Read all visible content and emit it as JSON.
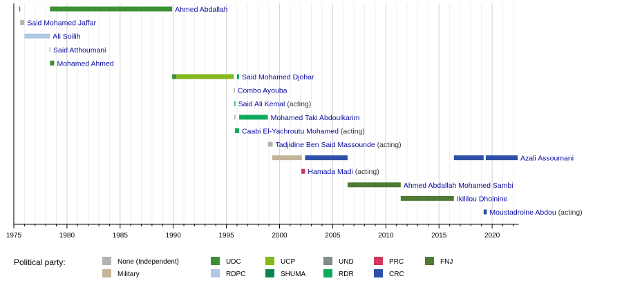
{
  "chart_data": {
    "type": "timeline",
    "title": "",
    "xlim": [
      1975,
      2022.5
    ],
    "x_ticks": [
      1975,
      1980,
      1985,
      1990,
      1995,
      2000,
      2005,
      2010,
      2015,
      2020
    ],
    "grid": true,
    "legend_title": "Political party:",
    "legend_position": "bottom",
    "parties": [
      {
        "key": "none",
        "name": "None (Independent)",
        "color": "#b3b3b3"
      },
      {
        "key": "military",
        "name": "Military",
        "color": "#c4b49a"
      },
      {
        "key": "udc",
        "name": "UDC",
        "color": "#3d8f35"
      },
      {
        "key": "rdpc",
        "name": "RDPC",
        "color": "#b0c8e3"
      },
      {
        "key": "ucp",
        "name": "UCP",
        "color": "#84b81c"
      },
      {
        "key": "shuma",
        "name": "SHUMA",
        "color": "#0a8551"
      },
      {
        "key": "und",
        "name": "UND",
        "color": "#7f8c8a"
      },
      {
        "key": "rdr",
        "name": "RDR",
        "color": "#0daa5c"
      },
      {
        "key": "prc",
        "name": "PRC",
        "color": "#d0365e"
      },
      {
        "key": "crc",
        "name": "CRC",
        "color": "#2e50a8"
      },
      {
        "key": "fnj",
        "name": "FNJ",
        "color": "#4e7a34"
      }
    ],
    "rows": [
      {
        "name": "Ahmed Abdallah",
        "note": "",
        "segments": [
          [
            1975.5,
            1975.6,
            "udc"
          ],
          [
            1978.4,
            1989.9,
            "udc"
          ]
        ]
      },
      {
        "name": "Said Mohamed Jaffar",
        "note": "",
        "segments": [
          [
            1975.6,
            1976.0,
            "none"
          ]
        ]
      },
      {
        "name": "Ali Soilih",
        "note": "",
        "segments": [
          [
            1976.0,
            1978.4,
            "rdpc"
          ]
        ]
      },
      {
        "name": "Said Atthoumani",
        "note": "",
        "segments": [
          [
            1978.35,
            1978.42,
            "none"
          ]
        ]
      },
      {
        "name": "Mohamed Ahmed",
        "note": "",
        "segments": [
          [
            1978.4,
            1978.8,
            "udc"
          ]
        ]
      },
      {
        "name": "Said Mohamed Djohar",
        "note": "",
        "segments": [
          [
            1989.9,
            1990.3,
            "udc"
          ],
          [
            1990.3,
            1995.7,
            "ucp"
          ],
          [
            1996.0,
            1996.2,
            "rdr"
          ]
        ]
      },
      {
        "name": "Combo Ayouba",
        "note": "",
        "segments": [
          [
            1995.7,
            1995.8,
            "none"
          ]
        ]
      },
      {
        "name": "Said Ali Kemal",
        "note": "(acting)",
        "segments": [
          [
            1995.75,
            1995.82,
            "rdr"
          ]
        ]
      },
      {
        "name": "Mohamed Taki Abdoulkarim",
        "note": "",
        "segments": [
          [
            1995.75,
            1995.82,
            "none"
          ],
          [
            1996.2,
            1998.9,
            "rdr"
          ]
        ]
      },
      {
        "name": "Caabi El-Yachroutu Mohamed",
        "note": "(acting)",
        "segments": [
          [
            1995.8,
            1996.2,
            "rdr"
          ]
        ]
      },
      {
        "name": "Tadjidine Ben Said Massounde",
        "note": "(acting)",
        "segments": [
          [
            1998.9,
            1999.35,
            "none"
          ]
        ]
      },
      {
        "name": "Azali Assoumani",
        "note": "",
        "segments": [
          [
            1999.3,
            2002.1,
            "military"
          ],
          [
            2002.4,
            2006.4,
            "crc"
          ],
          [
            2016.4,
            2019.2,
            "crc"
          ],
          [
            2019.4,
            2022.4,
            "crc"
          ]
        ]
      },
      {
        "name": "Hamada Madi",
        "note": "(acting)",
        "segments": [
          [
            2002.05,
            2002.4,
            "prc"
          ]
        ]
      },
      {
        "name": "Ahmed Abdallah Mohamed Sambi",
        "note": "",
        "segments": [
          [
            2006.4,
            2011.4,
            "fnj"
          ]
        ]
      },
      {
        "name": "Ikililou Dhoinine",
        "note": "",
        "segments": [
          [
            2011.4,
            2016.4,
            "fnj"
          ]
        ]
      },
      {
        "name": "Moustadroine Abdou",
        "note": "(acting)",
        "segments": [
          [
            2019.2,
            2019.5,
            "crc"
          ]
        ]
      }
    ]
  }
}
